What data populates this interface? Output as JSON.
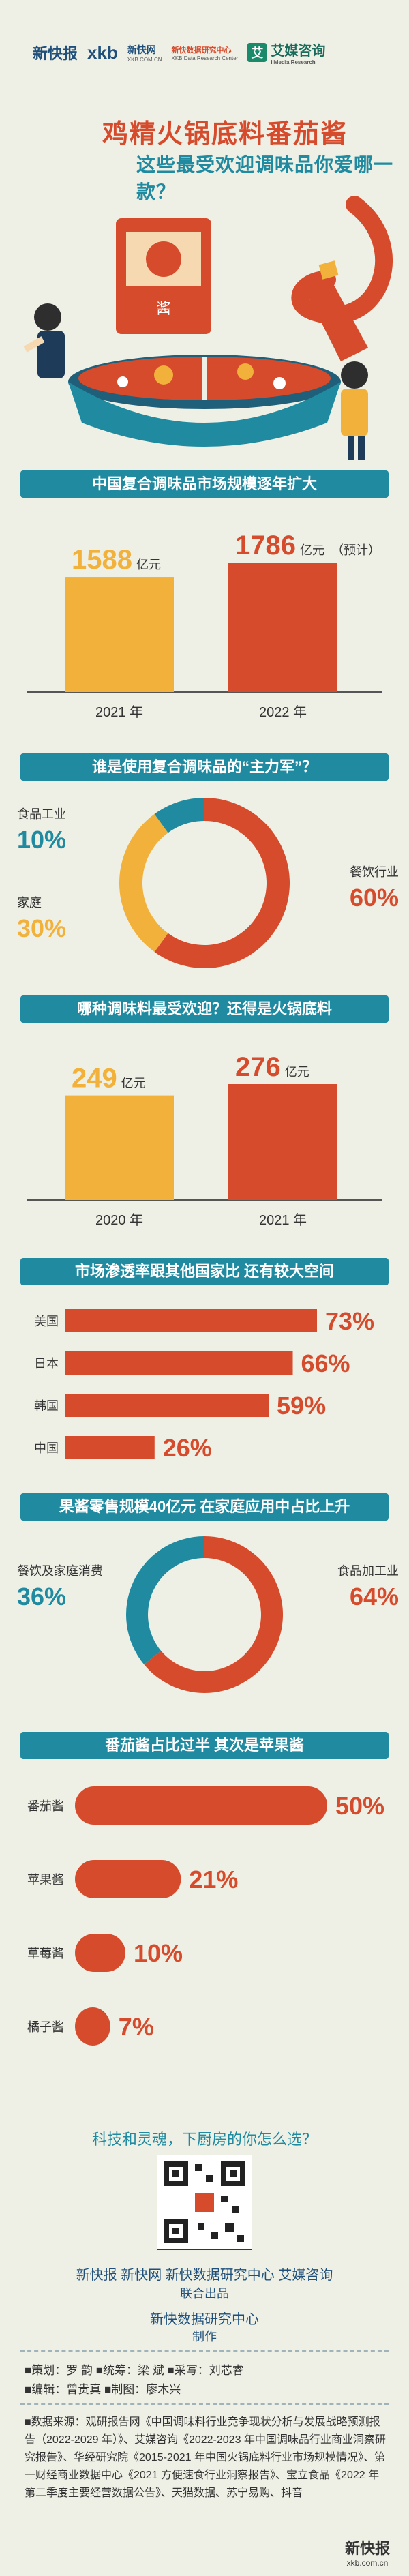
{
  "header": {
    "logo_xkb": "新快报",
    "logo_xkb_en": "xkb",
    "logo_xkbw": "新快网",
    "logo_xkbw_sub": "XKB.COM.CN",
    "logo_research": "新快数据研究中心",
    "logo_research_sub": "XKB Data Research Center",
    "logo_aimei": "艾媒咨询",
    "logo_aimei_sub": "iiMedia Research",
    "aimei_mark": "艾",
    "title1": "鸡精火锅底料番茄酱",
    "title2": "这些最受欢迎调味品你爱哪一款？",
    "sauce_pack_label": "酱"
  },
  "sections": {
    "s1": {
      "title": "中国复合调味品市场规模逐年扩大"
    },
    "s2": {
      "title": "谁是使用复合调味品的“主力军”？"
    },
    "s3": {
      "title": "哪种调味料最受欢迎？还得是火锅底料"
    },
    "s4": {
      "title": "市场渗透率跟其他国家比  还有较大空间"
    },
    "s5": {
      "title": "果酱零售规模40亿元  在家庭应用中占比上升"
    },
    "s6": {
      "title": "番茄酱占比过半  其次是苹果酱"
    }
  },
  "chart_data": [
    {
      "type": "bar",
      "title": "中国复合调味品市场规模逐年扩大",
      "categories": [
        "2021 年",
        "2022 年"
      ],
      "values": [
        1588,
        1786
      ],
      "unit": "亿元",
      "annotations": [
        "",
        "（预计）"
      ],
      "colors": [
        "#f2b13a",
        "#d64b2c"
      ]
    },
    {
      "type": "pie",
      "title": "谁是使用复合调味品的“主力军”？",
      "labels": [
        "餐饮行业",
        "家庭",
        "食品工业"
      ],
      "values": [
        60,
        30,
        10
      ],
      "colors": [
        "#d64b2c",
        "#f2b13a",
        "#1f8aa0"
      ]
    },
    {
      "type": "bar",
      "title": "哪种调味料最受欢迎？还得是火锅底料",
      "categories": [
        "2020 年",
        "2021 年"
      ],
      "values": [
        249,
        276
      ],
      "unit": "亿元",
      "colors": [
        "#f2b13a",
        "#d64b2c"
      ]
    },
    {
      "type": "bar",
      "orientation": "horizontal",
      "title": "市场渗透率跟其他国家比  还有较大空间",
      "categories": [
        "美国",
        "日本",
        "韩国",
        "中国"
      ],
      "values": [
        73,
        66,
        59,
        26
      ],
      "unit": "%"
    },
    {
      "type": "pie",
      "title": "果酱零售规模40亿元  在家庭应用中占比上升",
      "labels": [
        "食品加工业",
        "餐饮及家庭消费"
      ],
      "values": [
        64,
        36
      ],
      "colors": [
        "#d64b2c",
        "#1f8aa0"
      ]
    },
    {
      "type": "bar",
      "orientation": "horizontal",
      "title": "番茄酱占比过半  其次是苹果酱",
      "categories": [
        "番茄酱",
        "苹果酱",
        "草莓酱",
        "橘子酱"
      ],
      "values": [
        50,
        21,
        10,
        7
      ],
      "unit": "%"
    }
  ],
  "footer": {
    "slogan": "科技和灵魂，下厨房的你怎么选？",
    "orgs": "新快报  新快网  新快数据研究中心  艾媒咨询",
    "joint": "联合出品",
    "producer": "新快数据研究中心",
    "produce": "制作",
    "credits1": "■策划：罗  韵    ■统筹：梁  斌    ■采写：刘芯睿",
    "credits2": "■编辑：曾贵真    ■制图：廖木兴",
    "sources": "■数据来源：观研报告网《中国调味料行业竞争现状分析与发展战略预测报告（2022-2029 年）》、艾媒咨询《2022-2023 年中国调味品行业商业洞察研究报告》、华经研究院《2015-2021 年中国火锅底料行业市场规模情况》、第一财经商业数据中心《2021 方便速食行业洞察报告》、宝立食品《2022 年第二季度主要经营数据公告》、天猫数据、苏宁易购、抖音",
    "stamp_name": "新快报",
    "stamp_url": "xkb.com.cn"
  }
}
